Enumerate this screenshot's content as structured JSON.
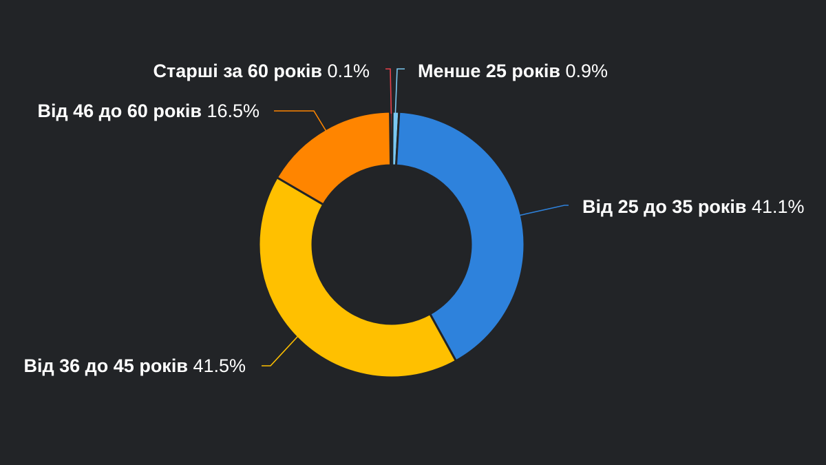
{
  "chart_data": {
    "type": "pie",
    "variant": "donut",
    "background": "#222427",
    "slices": [
      {
        "label": "Менше 25 років",
        "value": 0.9,
        "value_label": "0.9%",
        "color": "#7ac8f2"
      },
      {
        "label": "Від 25 до 35 років",
        "value": 41.1,
        "value_label": "41.1%",
        "color": "#2e82dc"
      },
      {
        "label": "Від 36 до 45 років",
        "value": 41.5,
        "value_label": "41.5%",
        "color": "#ffc000"
      },
      {
        "label": "Від 46 до 60 років",
        "value": 16.5,
        "value_label": "16.5%",
        "color": "#ff8500"
      },
      {
        "label": "Старші за 60 років",
        "value": 0.1,
        "value_label": "0.1%",
        "color": "#e8404a"
      }
    ]
  }
}
